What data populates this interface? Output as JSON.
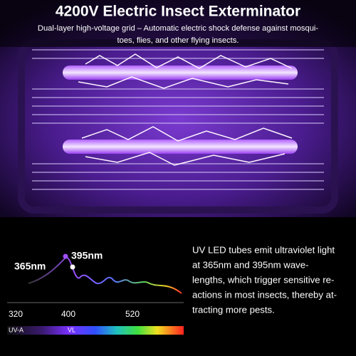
{
  "header": {
    "title": "4200V Electric Insect Exterminator",
    "subtitle_lines": [
      "Dual-layer high-voltage grid – Automatic electric shock defense against mosqui-",
      "toes, flies, and other flying insects."
    ]
  },
  "spectrum": {
    "peak_labels": [
      "365nm",
      "395nm"
    ],
    "axis_labels": [
      "320",
      "400",
      "520"
    ],
    "band_labels": [
      "UV-A",
      "VL"
    ]
  },
  "description": {
    "lines": [
      "UV LED tubes emit ultraviolet light",
      "at 365nm and 395nm wave-",
      "lengths, which trigger sensitive re-",
      "actions in most insects, thereby at-",
      "tracting more pests."
    ]
  }
}
